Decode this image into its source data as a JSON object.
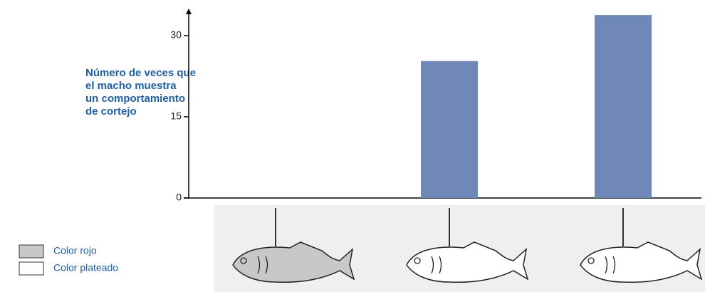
{
  "chart_data": {
    "type": "bar",
    "ylabel": [
      "Número de veces que",
      "el macho muestra",
      "un comportamiento",
      "de cortejo"
    ],
    "categories": [
      null,
      null,
      null
    ],
    "values": [
      0,
      25.3,
      33.8
    ],
    "color": "#6f88b8",
    "model_colors": [
      "#c8c8c8",
      "#ffffff",
      "#ffffff"
    ],
    "ylim": [
      0,
      35
    ],
    "yticks": [
      0,
      15,
      30
    ],
    "legend": [
      {
        "label": "Color rojo",
        "color": "#c8c8c8"
      },
      {
        "label": "Color plateado",
        "color": "#ffffff"
      }
    ]
  }
}
